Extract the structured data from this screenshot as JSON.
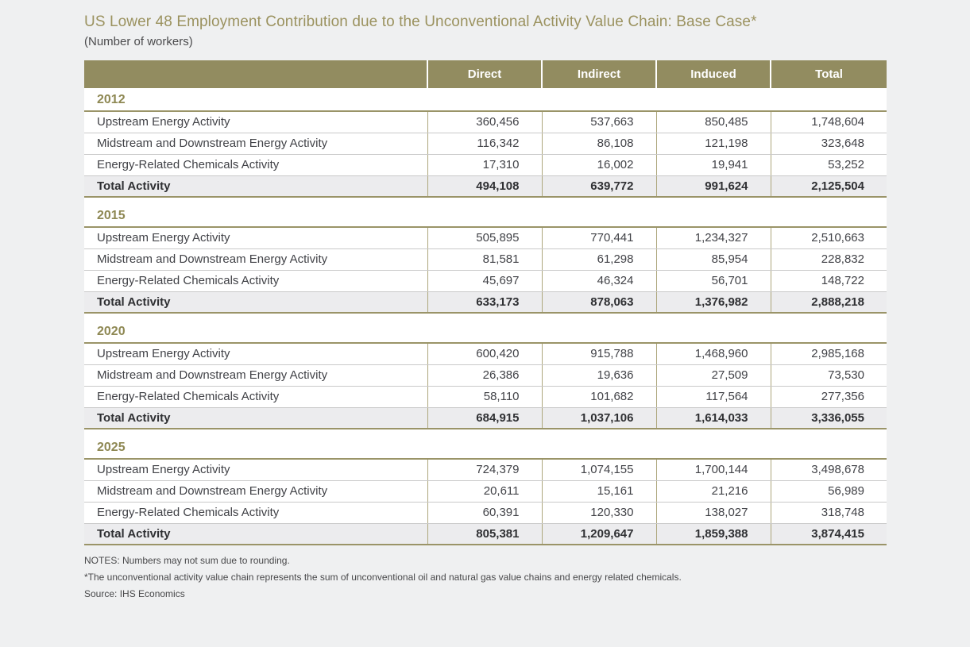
{
  "page": {
    "title": "US Lower 48 Employment Contribution due to the Unconventional Activity Value Chain: Base Case*",
    "subtitle": "(Number of workers)"
  },
  "table": {
    "columns": [
      "",
      "Direct",
      "Indirect",
      "Induced",
      "Total"
    ],
    "sections": [
      {
        "year": "2012",
        "rows": [
          [
            "Upstream Energy Activity",
            "360,456",
            "537,663",
            "850,485",
            "1,748,604"
          ],
          [
            "Midstream and Downstream Energy Activity",
            "116,342",
            "86,108",
            "121,198",
            "323,648"
          ],
          [
            "Energy-Related Chemicals Activity",
            "17,310",
            "16,002",
            "19,941",
            "53,252"
          ],
          [
            "Total Activity",
            "494,108",
            "639,772",
            "991,624",
            "2,125,504"
          ]
        ]
      },
      {
        "year": "2015",
        "rows": [
          [
            "Upstream Energy Activity",
            "505,895",
            "770,441",
            "1,234,327",
            "2,510,663"
          ],
          [
            "Midstream and Downstream Energy Activity",
            "81,581",
            "61,298",
            "85,954",
            "228,832"
          ],
          [
            "Energy-Related Chemicals Activity",
            "45,697",
            "46,324",
            "56,701",
            "148,722"
          ],
          [
            "Total Activity",
            "633,173",
            "878,063",
            "1,376,982",
            "2,888,218"
          ]
        ]
      },
      {
        "year": "2020",
        "rows": [
          [
            "Upstream Energy Activity",
            "600,420",
            "915,788",
            "1,468,960",
            "2,985,168"
          ],
          [
            "Midstream and Downstream Energy Activity",
            "26,386",
            "19,636",
            "27,509",
            "73,530"
          ],
          [
            "Energy-Related Chemicals Activity",
            "58,110",
            "101,682",
            "117,564",
            "277,356"
          ],
          [
            "Total Activity",
            "684,915",
            "1,037,106",
            "1,614,033",
            "3,336,055"
          ]
        ]
      },
      {
        "year": "2025",
        "rows": [
          [
            "Upstream Energy Activity",
            "724,379",
            "1,074,155",
            "1,700,144",
            "3,498,678"
          ],
          [
            "Midstream and Downstream Energy Activity",
            "20,611",
            "15,161",
            "21,216",
            "56,989"
          ],
          [
            "Energy-Related Chemicals Activity",
            "60,391",
            "120,330",
            "138,027",
            "318,748"
          ],
          [
            "Total Activity",
            "805,381",
            "1,209,647",
            "1,859,388",
            "3,874,415"
          ]
        ]
      }
    ]
  },
  "footnotes": [
    "NOTES: Numbers may not sum due to rounding.",
    "*The unconventional activity value chain represents the sum of unconventional oil and natural gas value chains and energy related chemicals.",
    "Source: IHS Economics"
  ],
  "colors": {
    "accent": "#928c60",
    "accent-dark": "#9a9468",
    "accent-text": "#8e8853",
    "title": "#9b925f",
    "vline": "#ada67c",
    "hline": "#c9c9c9",
    "totalbg": "#ececee",
    "pagebg": "#eff0f1"
  }
}
